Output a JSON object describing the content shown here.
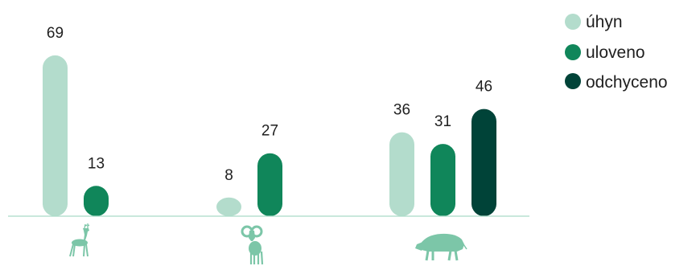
{
  "colors": {
    "uhyn": "#b3dccc",
    "uloveno": "#10865a",
    "odchyceno": "#004338",
    "icon": "#7cc6a8",
    "baseline": "#a9dbc7"
  },
  "chart_data": {
    "type": "bar",
    "categories": [
      "roe-deer",
      "mouflon",
      "wild-boar"
    ],
    "category_icons": [
      "deer-icon",
      "mouflon-icon",
      "boar-icon"
    ],
    "series": [
      {
        "name": "úhyn",
        "values": [
          69,
          8,
          36
        ]
      },
      {
        "name": "uloveno",
        "values": [
          13,
          27,
          31
        ]
      },
      {
        "name": "odchyceno",
        "values": [
          null,
          null,
          46
        ]
      }
    ],
    "ylim": [
      0,
      80
    ],
    "grid": false,
    "legend_position": "top-right",
    "data_labels": true
  }
}
